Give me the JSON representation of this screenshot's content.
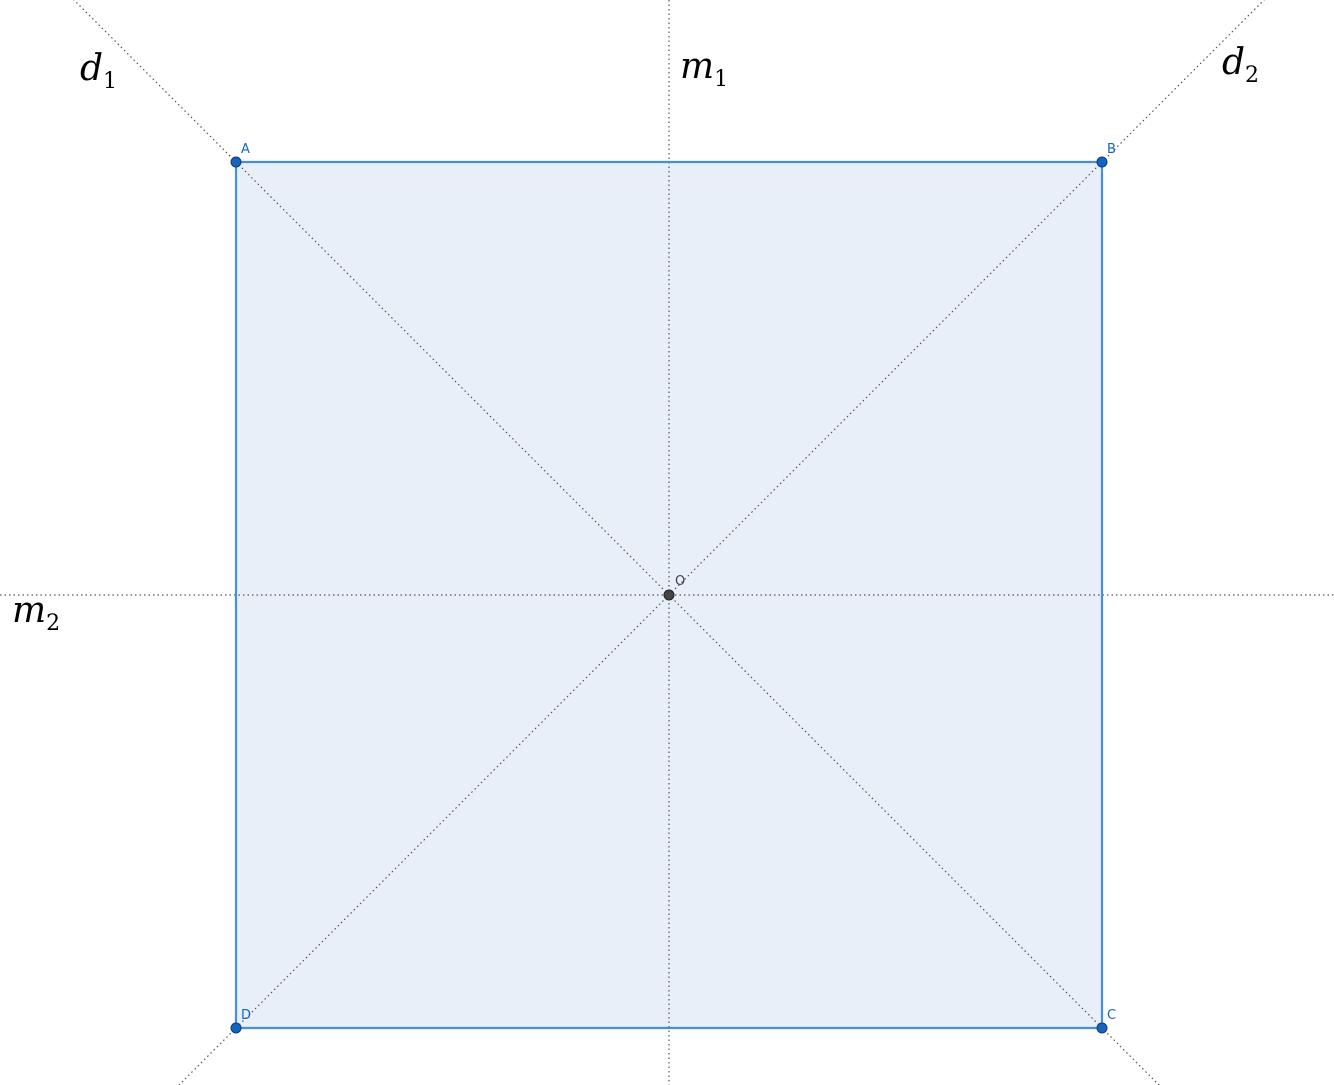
{
  "diagram": {
    "vertices": {
      "a": "A",
      "b": "B",
      "c": "C",
      "d": "D",
      "center": "O"
    },
    "lines": {
      "d1": {
        "main": "d",
        "sub": "1"
      },
      "d2": {
        "main": "d",
        "sub": "2"
      },
      "m1": {
        "main": "m",
        "sub": "1"
      },
      "m2": {
        "main": "m",
        "sub": "2"
      }
    },
    "colors": {
      "fill": "#e8eff9",
      "edge": "#4a8fd6",
      "vertex": "#1565c0",
      "center": "#444444",
      "guide": "#555555"
    }
  }
}
